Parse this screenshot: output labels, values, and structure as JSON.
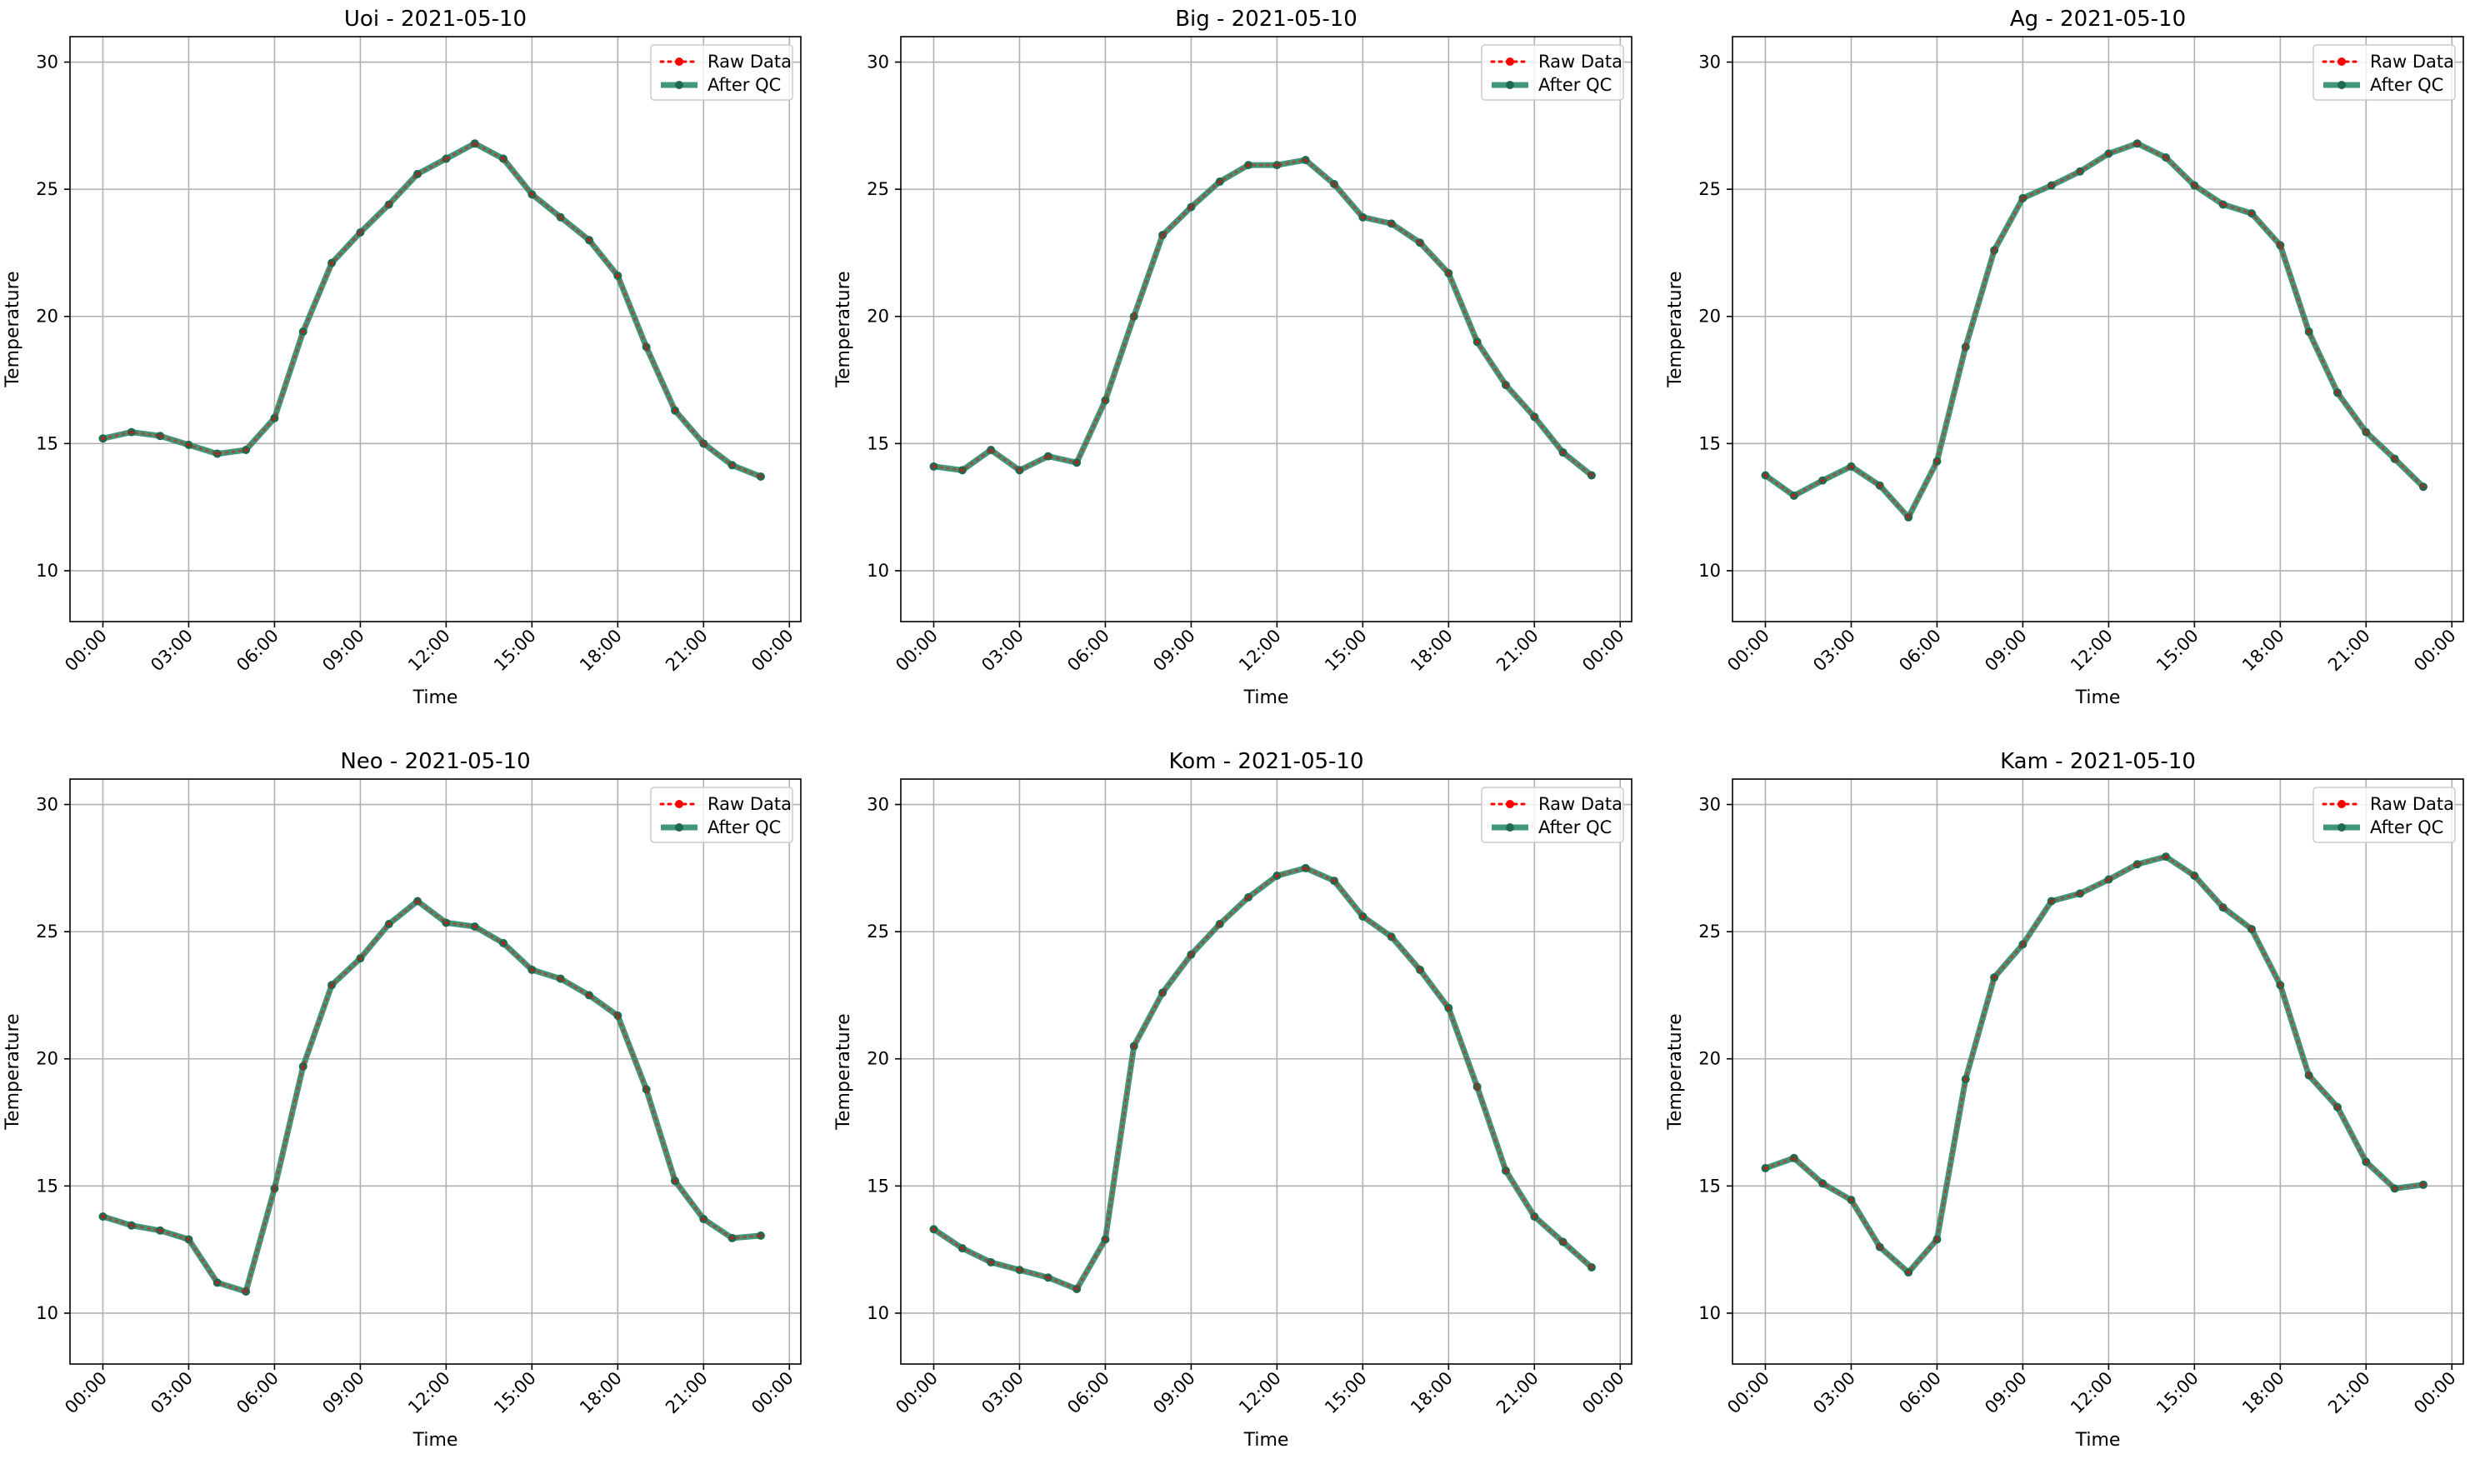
{
  "colors": {
    "raw": "#ff0000",
    "qc": "#2e8b6a",
    "qc_marker": "#1f6b50",
    "grid": "#b0b0b0",
    "axis": "#000000"
  },
  "legend": {
    "raw": "Raw Data",
    "qc": "After QC",
    "placement": "upper right"
  },
  "chart_data": [
    {
      "type": "line",
      "title": "Uoi - 2021-05-10",
      "xlabel": "Time",
      "ylabel": "Temperature",
      "ylim": [
        8,
        31
      ],
      "yticks": [
        10,
        15,
        20,
        25,
        30
      ],
      "xticks": [
        "00:00",
        "03:00",
        "06:00",
        "09:00",
        "12:00",
        "15:00",
        "18:00",
        "21:00",
        "00:00"
      ],
      "grid": true,
      "x": [
        "00:00",
        "01:00",
        "02:00",
        "03:00",
        "04:00",
        "05:00",
        "06:00",
        "07:00",
        "08:00",
        "09:00",
        "10:00",
        "11:00",
        "12:00",
        "13:00",
        "14:00",
        "15:00",
        "16:00",
        "17:00",
        "18:00",
        "19:00",
        "20:00",
        "21:00",
        "22:00",
        "23:00"
      ],
      "series": [
        {
          "name": "Raw Data",
          "values": [
            15.2,
            15.45,
            15.3,
            14.95,
            14.6,
            14.75,
            16.0,
            19.4,
            22.1,
            23.3,
            24.4,
            25.6,
            26.2,
            26.8,
            26.2,
            24.8,
            23.9,
            23.0,
            21.6,
            18.8,
            16.3,
            15.0,
            14.15,
            13.7
          ]
        },
        {
          "name": "After QC",
          "values": [
            15.2,
            15.45,
            15.3,
            14.95,
            14.6,
            14.75,
            16.0,
            19.4,
            22.1,
            23.3,
            24.4,
            25.6,
            26.2,
            26.8,
            26.2,
            24.8,
            23.9,
            23.0,
            21.6,
            18.8,
            16.3,
            15.0,
            14.15,
            13.7
          ]
        }
      ]
    },
    {
      "type": "line",
      "title": "Big - 2021-05-10",
      "xlabel": "Time",
      "ylabel": "Temperature",
      "ylim": [
        8,
        31
      ],
      "yticks": [
        10,
        15,
        20,
        25,
        30
      ],
      "xticks": [
        "00:00",
        "03:00",
        "06:00",
        "09:00",
        "12:00",
        "15:00",
        "18:00",
        "21:00",
        "00:00"
      ],
      "grid": true,
      "x": [
        "00:00",
        "01:00",
        "02:00",
        "03:00",
        "04:00",
        "05:00",
        "06:00",
        "07:00",
        "08:00",
        "09:00",
        "10:00",
        "11:00",
        "12:00",
        "13:00",
        "14:00",
        "15:00",
        "16:00",
        "17:00",
        "18:00",
        "19:00",
        "20:00",
        "21:00",
        "22:00",
        "23:00"
      ],
      "series": [
        {
          "name": "Raw Data",
          "values": [
            14.1,
            13.95,
            14.75,
            13.95,
            14.5,
            14.25,
            16.7,
            20.0,
            23.2,
            24.3,
            25.3,
            25.95,
            25.95,
            26.15,
            25.2,
            23.9,
            23.65,
            22.9,
            21.7,
            19.0,
            17.3,
            16.05,
            14.65,
            13.75
          ]
        },
        {
          "name": "After QC",
          "values": [
            14.1,
            13.95,
            14.75,
            13.95,
            14.5,
            14.25,
            16.7,
            20.0,
            23.2,
            24.3,
            25.3,
            25.95,
            25.95,
            26.15,
            25.2,
            23.9,
            23.65,
            22.9,
            21.7,
            19.0,
            17.3,
            16.05,
            14.65,
            13.75
          ]
        }
      ]
    },
    {
      "type": "line",
      "title": "Ag - 2021-05-10",
      "xlabel": "Time",
      "ylabel": "Temperature",
      "ylim": [
        8,
        31
      ],
      "yticks": [
        10,
        15,
        20,
        25,
        30
      ],
      "xticks": [
        "00:00",
        "03:00",
        "06:00",
        "09:00",
        "12:00",
        "15:00",
        "18:00",
        "21:00",
        "00:00"
      ],
      "grid": true,
      "x": [
        "00:00",
        "01:00",
        "02:00",
        "03:00",
        "04:00",
        "05:00",
        "06:00",
        "07:00",
        "08:00",
        "09:00",
        "10:00",
        "11:00",
        "12:00",
        "13:00",
        "14:00",
        "15:00",
        "16:00",
        "17:00",
        "18:00",
        "19:00",
        "20:00",
        "21:00",
        "22:00",
        "23:00"
      ],
      "series": [
        {
          "name": "Raw Data",
          "values": [
            13.75,
            12.95,
            13.55,
            14.1,
            13.35,
            12.1,
            14.3,
            18.8,
            22.6,
            24.65,
            25.15,
            25.7,
            26.4,
            26.8,
            26.25,
            25.15,
            24.4,
            24.05,
            22.8,
            19.4,
            17.0,
            15.45,
            14.4,
            13.3
          ]
        },
        {
          "name": "After QC",
          "values": [
            13.75,
            12.95,
            13.55,
            14.1,
            13.35,
            12.1,
            14.3,
            18.8,
            22.6,
            24.65,
            25.15,
            25.7,
            26.4,
            26.8,
            26.25,
            25.15,
            24.4,
            24.05,
            22.8,
            19.4,
            17.0,
            15.45,
            14.4,
            13.3
          ]
        }
      ]
    },
    {
      "type": "line",
      "title": "Neo - 2021-05-10",
      "xlabel": "Time",
      "ylabel": "Temperature",
      "ylim": [
        8,
        31
      ],
      "yticks": [
        10,
        15,
        20,
        25,
        30
      ],
      "xticks": [
        "00:00",
        "03:00",
        "06:00",
        "09:00",
        "12:00",
        "15:00",
        "18:00",
        "21:00",
        "00:00"
      ],
      "grid": true,
      "x": [
        "00:00",
        "01:00",
        "02:00",
        "03:00",
        "04:00",
        "05:00",
        "06:00",
        "07:00",
        "08:00",
        "09:00",
        "10:00",
        "11:00",
        "12:00",
        "13:00",
        "14:00",
        "15:00",
        "16:00",
        "17:00",
        "18:00",
        "19:00",
        "20:00",
        "21:00",
        "22:00",
        "23:00"
      ],
      "series": [
        {
          "name": "Raw Data",
          "values": [
            13.8,
            13.45,
            13.25,
            12.9,
            11.2,
            10.85,
            14.9,
            19.7,
            22.9,
            23.95,
            25.3,
            26.2,
            25.35,
            25.2,
            24.55,
            23.5,
            23.15,
            22.5,
            21.7,
            18.8,
            15.2,
            13.7,
            12.95,
            13.05
          ]
        },
        {
          "name": "After QC",
          "values": [
            13.8,
            13.45,
            13.25,
            12.9,
            11.2,
            10.85,
            14.9,
            19.7,
            22.9,
            23.95,
            25.3,
            26.2,
            25.35,
            25.2,
            24.55,
            23.5,
            23.15,
            22.5,
            21.7,
            18.8,
            15.2,
            13.7,
            12.95,
            13.05
          ]
        }
      ]
    },
    {
      "type": "line",
      "title": "Kom - 2021-05-10",
      "xlabel": "Time",
      "ylabel": "Temperature",
      "ylim": [
        8,
        31
      ],
      "yticks": [
        10,
        15,
        20,
        25,
        30
      ],
      "xticks": [
        "00:00",
        "03:00",
        "06:00",
        "09:00",
        "12:00",
        "15:00",
        "18:00",
        "21:00",
        "00:00"
      ],
      "grid": true,
      "x": [
        "00:00",
        "01:00",
        "02:00",
        "03:00",
        "04:00",
        "05:00",
        "06:00",
        "07:00",
        "08:00",
        "09:00",
        "10:00",
        "11:00",
        "12:00",
        "13:00",
        "14:00",
        "15:00",
        "16:00",
        "17:00",
        "18:00",
        "19:00",
        "20:00",
        "21:00",
        "22:00",
        "23:00"
      ],
      "series": [
        {
          "name": "Raw Data",
          "values": [
            13.3,
            12.55,
            12.0,
            11.7,
            11.4,
            10.95,
            12.9,
            20.5,
            22.6,
            24.1,
            25.3,
            26.35,
            27.2,
            27.5,
            27.0,
            25.6,
            24.8,
            23.5,
            22.0,
            18.9,
            15.6,
            13.8,
            12.8,
            11.8
          ]
        },
        {
          "name": "After QC",
          "values": [
            13.3,
            12.55,
            12.0,
            11.7,
            11.4,
            10.95,
            12.9,
            20.5,
            22.6,
            24.1,
            25.3,
            26.35,
            27.2,
            27.5,
            27.0,
            25.6,
            24.8,
            23.5,
            22.0,
            18.9,
            15.6,
            13.8,
            12.8,
            11.8
          ]
        }
      ]
    },
    {
      "type": "line",
      "title": "Kam - 2021-05-10",
      "xlabel": "Time",
      "ylabel": "Temperature",
      "ylim": [
        8,
        31
      ],
      "yticks": [
        10,
        15,
        20,
        25,
        30
      ],
      "xticks": [
        "00:00",
        "03:00",
        "06:00",
        "09:00",
        "12:00",
        "15:00",
        "18:00",
        "21:00",
        "00:00"
      ],
      "grid": true,
      "x": [
        "00:00",
        "01:00",
        "02:00",
        "03:00",
        "04:00",
        "05:00",
        "06:00",
        "07:00",
        "08:00",
        "09:00",
        "10:00",
        "11:00",
        "12:00",
        "13:00",
        "14:00",
        "15:00",
        "16:00",
        "17:00",
        "18:00",
        "19:00",
        "20:00",
        "21:00",
        "22:00",
        "23:00"
      ],
      "series": [
        {
          "name": "Raw Data",
          "values": [
            15.7,
            16.1,
            15.1,
            14.45,
            12.6,
            11.6,
            12.9,
            19.2,
            23.2,
            24.5,
            26.2,
            26.5,
            27.05,
            27.65,
            27.95,
            27.2,
            25.95,
            25.1,
            22.9,
            19.35,
            18.1,
            15.95,
            14.9,
            15.05
          ]
        },
        {
          "name": "After QC",
          "values": [
            15.7,
            16.1,
            15.1,
            14.45,
            12.6,
            11.6,
            12.9,
            19.2,
            23.2,
            24.5,
            26.2,
            26.5,
            27.05,
            27.65,
            27.95,
            27.2,
            25.95,
            25.1,
            22.9,
            19.35,
            18.1,
            15.95,
            14.9,
            15.05
          ]
        }
      ]
    }
  ]
}
